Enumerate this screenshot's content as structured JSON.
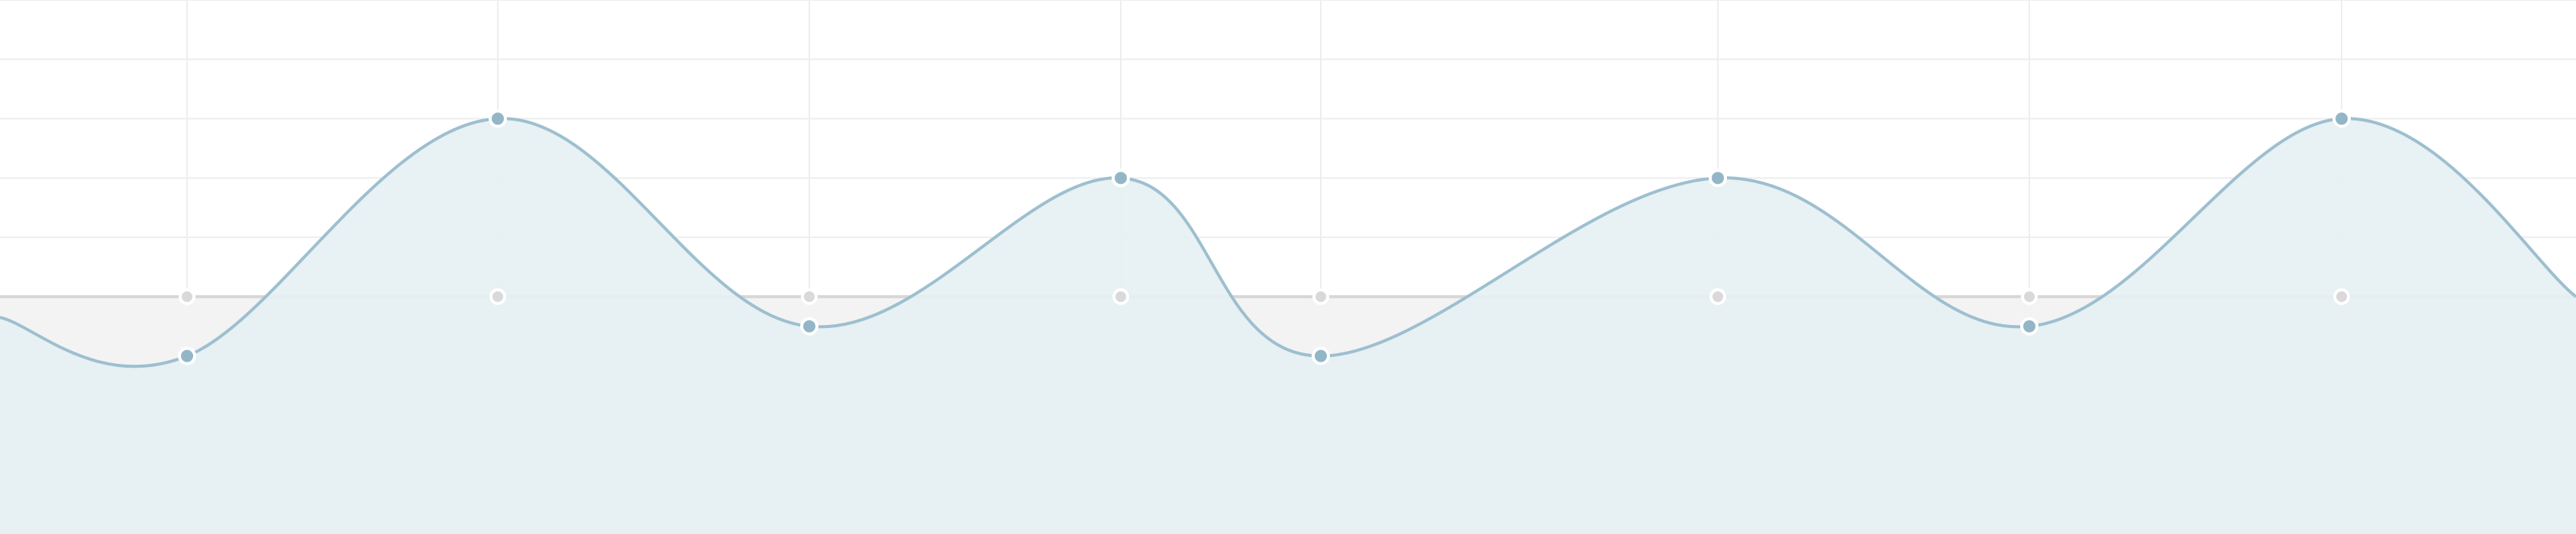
{
  "colors": {
    "background": "#ffffff",
    "grid": "#eeeeee",
    "series_line": "#9dbfd0",
    "series_fill": "#e6f0f2",
    "series_point": "#93b6c7",
    "baseline_line": "#d7d7d7",
    "baseline_fill": "#f3f3f3",
    "baseline_point": "#d9d9d9"
  },
  "chart_data": {
    "type": "area",
    "title": "",
    "xlabel": "",
    "ylabel": "",
    "grid": true,
    "legend": "none",
    "x": [
      1,
      2,
      3,
      4,
      5,
      6,
      7,
      8
    ],
    "ylim": [
      -4,
      5
    ],
    "series": [
      {
        "values": [
          -1,
          3,
          -0.5,
          2,
          -1,
          2,
          -0.5,
          3
        ]
      },
      {
        "values": [
          0,
          0,
          0,
          0,
          0,
          0,
          0,
          0
        ]
      }
    ]
  }
}
